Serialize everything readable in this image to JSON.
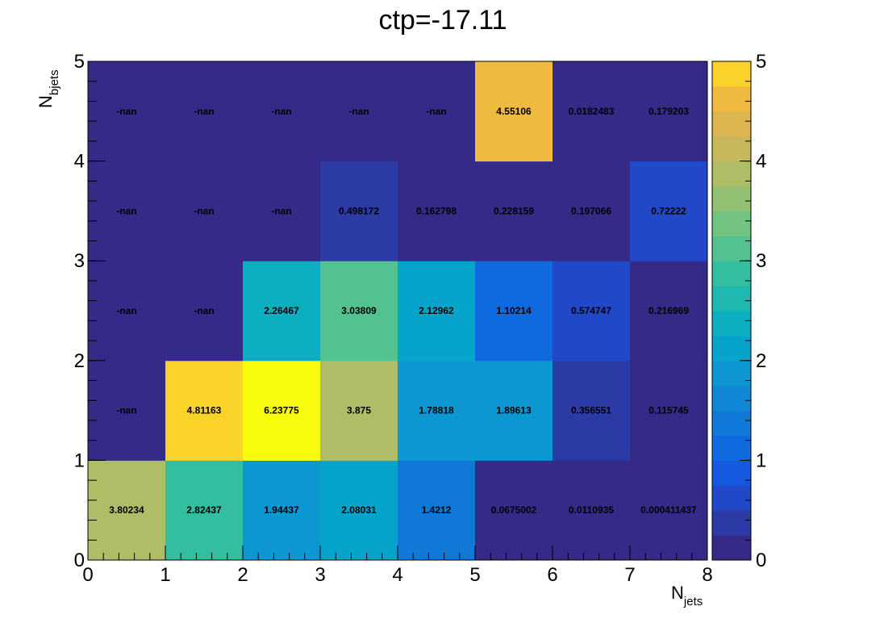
{
  "chart_data": {
    "type": "heatmap",
    "title": "ctp=-17.11",
    "xlabel": "N",
    "xlabel_sub": "jets",
    "ylabel": "N",
    "ylabel_sub": "bjets",
    "x_bins": [
      0,
      1,
      2,
      3,
      4,
      5,
      6,
      7,
      8
    ],
    "y_bins": [
      0,
      1,
      2,
      3,
      4,
      5
    ],
    "xlim": [
      0,
      8
    ],
    "ylim": [
      0,
      5
    ],
    "x_ticks": [
      "0",
      "1",
      "2",
      "3",
      "4",
      "5",
      "6",
      "7",
      "8"
    ],
    "y_ticks": [
      "0",
      "1",
      "2",
      "3",
      "4",
      "5"
    ],
    "zlim": [
      0,
      5
    ],
    "z_ticks": [
      "0",
      "1",
      "2",
      "3",
      "4",
      "5"
    ],
    "colorbar_levels": 20,
    "rows": [
      {
        "y": 0,
        "cells": [
          {
            "label": "3.80234",
            "value": 3.80234
          },
          {
            "label": "2.82437",
            "value": 2.82437
          },
          {
            "label": "1.94437",
            "value": 1.94437
          },
          {
            "label": "2.08031",
            "value": 2.08031
          },
          {
            "label": "1.4212",
            "value": 1.4212
          },
          {
            "label": "0.0675002",
            "value": 0.0675002
          },
          {
            "label": "0.0110935",
            "value": 0.0110935
          },
          {
            "label": "0.000411437",
            "value": 0.000411437
          }
        ]
      },
      {
        "y": 1,
        "cells": [
          {
            "label": "-nan",
            "value": null
          },
          {
            "label": "4.81163",
            "value": 4.81163
          },
          {
            "label": "6.23775",
            "value": 6.23775
          },
          {
            "label": "3.875",
            "value": 3.875
          },
          {
            "label": "1.78818",
            "value": 1.78818
          },
          {
            "label": "1.89613",
            "value": 1.89613
          },
          {
            "label": "0.356551",
            "value": 0.356551
          },
          {
            "label": "0.115745",
            "value": 0.115745
          }
        ]
      },
      {
        "y": 2,
        "cells": [
          {
            "label": "-nan",
            "value": null
          },
          {
            "label": "-nan",
            "value": null
          },
          {
            "label": "2.26467",
            "value": 2.26467
          },
          {
            "label": "3.03809",
            "value": 3.03809
          },
          {
            "label": "2.12962",
            "value": 2.12962
          },
          {
            "label": "1.10214",
            "value": 1.10214
          },
          {
            "label": "0.574747",
            "value": 0.574747
          },
          {
            "label": "0.216969",
            "value": 0.216969
          }
        ]
      },
      {
        "y": 3,
        "cells": [
          {
            "label": "-nan",
            "value": null
          },
          {
            "label": "-nan",
            "value": null
          },
          {
            "label": "-nan",
            "value": null
          },
          {
            "label": "0.498172",
            "value": 0.498172
          },
          {
            "label": "0.162798",
            "value": 0.162798
          },
          {
            "label": "0.228159",
            "value": 0.228159
          },
          {
            "label": "0.197066",
            "value": 0.197066
          },
          {
            "label": "0.72222",
            "value": 0.72222
          }
        ]
      },
      {
        "y": 4,
        "cells": [
          {
            "label": "-nan",
            "value": null
          },
          {
            "label": "-nan",
            "value": null
          },
          {
            "label": "-nan",
            "value": null
          },
          {
            "label": "-nan",
            "value": null
          },
          {
            "label": "-nan",
            "value": null
          },
          {
            "label": "4.55106",
            "value": 4.55106
          },
          {
            "label": "0.0182483",
            "value": 0.0182483
          },
          {
            "label": "0.179203",
            "value": 0.179203
          }
        ]
      }
    ],
    "palette": [
      "#352a87",
      "#2c3aa5",
      "#2148c8",
      "#1459e0",
      "#0f6ae0",
      "#1079d8",
      "#1188d6",
      "#0d97d2",
      "#06a4ca",
      "#0bafc0",
      "#1fb8b0",
      "#33bea0",
      "#52c291",
      "#72c381",
      "#92c173",
      "#aebd66",
      "#c6b85b",
      "#dbb64f",
      "#f0b940",
      "#f9d327",
      "#f9fb0e"
    ],
    "nan_color": "#352a87"
  }
}
